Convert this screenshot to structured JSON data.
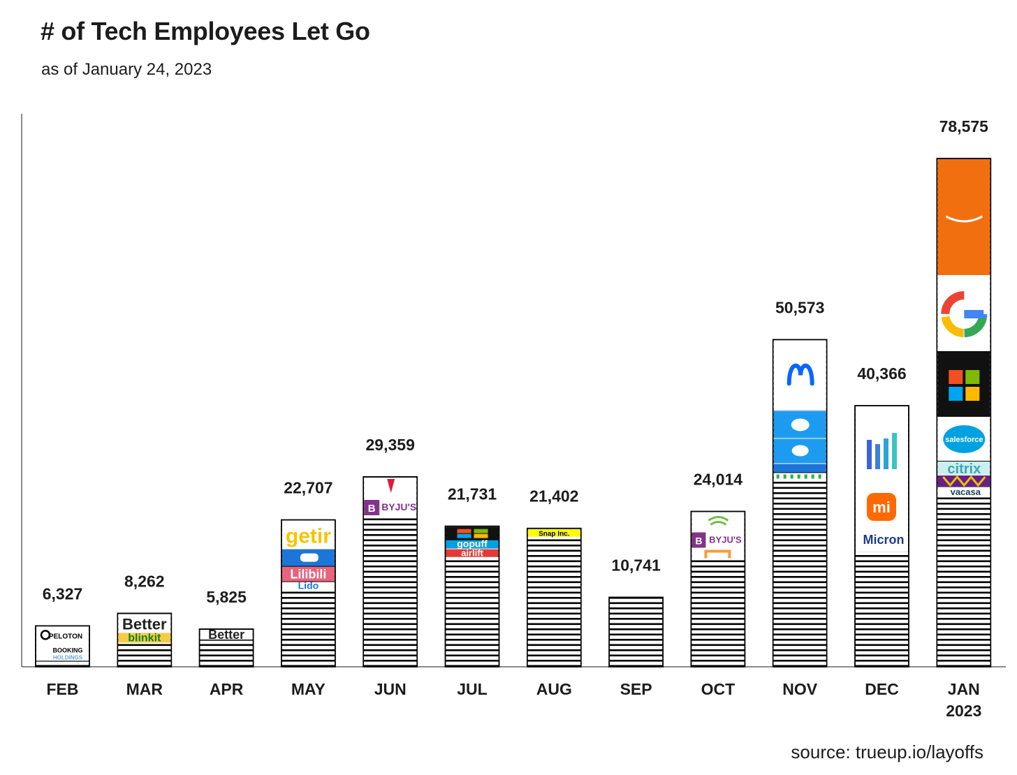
{
  "title": "# of Tech Employees Let Go",
  "subtitle": "as of January 24, 2023",
  "source": "source: trueup.io/layoffs",
  "chart_data": {
    "type": "bar",
    "title": "# of Tech Employees Let Go",
    "subtitle": "as of January 24, 2023",
    "categories": [
      "FEB",
      "MAR",
      "APR",
      "MAY",
      "JUN",
      "JUL",
      "AUG",
      "SEP",
      "OCT",
      "NOV",
      "DEC",
      "JAN\n2023"
    ],
    "values": [
      6327,
      8262,
      5825,
      22707,
      29359,
      21731,
      21402,
      10741,
      24014,
      50573,
      40366,
      78575
    ],
    "value_labels": [
      "6,327",
      "8,262",
      "5,825",
      "22,707",
      "29,359",
      "21,731",
      "21,402",
      "10,741",
      "24,014",
      "50,573",
      "40,366",
      "78,575"
    ],
    "xlabel": "",
    "ylabel": "",
    "ylim": [
      0,
      85000
    ],
    "grid": false,
    "legend": "none",
    "bar_fill": "striped",
    "company_segments": [
      [
        "Peloton",
        "Booking Holdings"
      ],
      [
        "Better",
        "blinkit"
      ],
      [
        "Better"
      ],
      [
        "getir",
        "Cazoo",
        "Lilibili",
        "Lido"
      ],
      [
        "Tesla",
        "BYJU'S"
      ],
      [
        "Microsoft",
        "gopuff",
        "airlift"
      ],
      [
        "Snap Inc."
      ],
      [],
      [
        "Seagate",
        "BYJU'S",
        "Udemy"
      ],
      [
        "Meta",
        "Twitter",
        "Twitter",
        "Lyft",
        "Cisco"
      ],
      [
        "Sakshi",
        "Xiaomi",
        "Micron"
      ],
      [
        "Amazon",
        "Google",
        "Microsoft",
        "Salesforce",
        "citrix",
        "Vacasa"
      ]
    ],
    "colors": {
      "bar_stripe": "#000000",
      "amazon": "#f26f0f",
      "twitter": "#1d9bf0",
      "byjus": "#813588",
      "getir_yellow": "#f5c400",
      "snap_yellow": "#fffc00",
      "meta_blue": "#0866ff",
      "xiaomi": "#ff6900"
    }
  }
}
